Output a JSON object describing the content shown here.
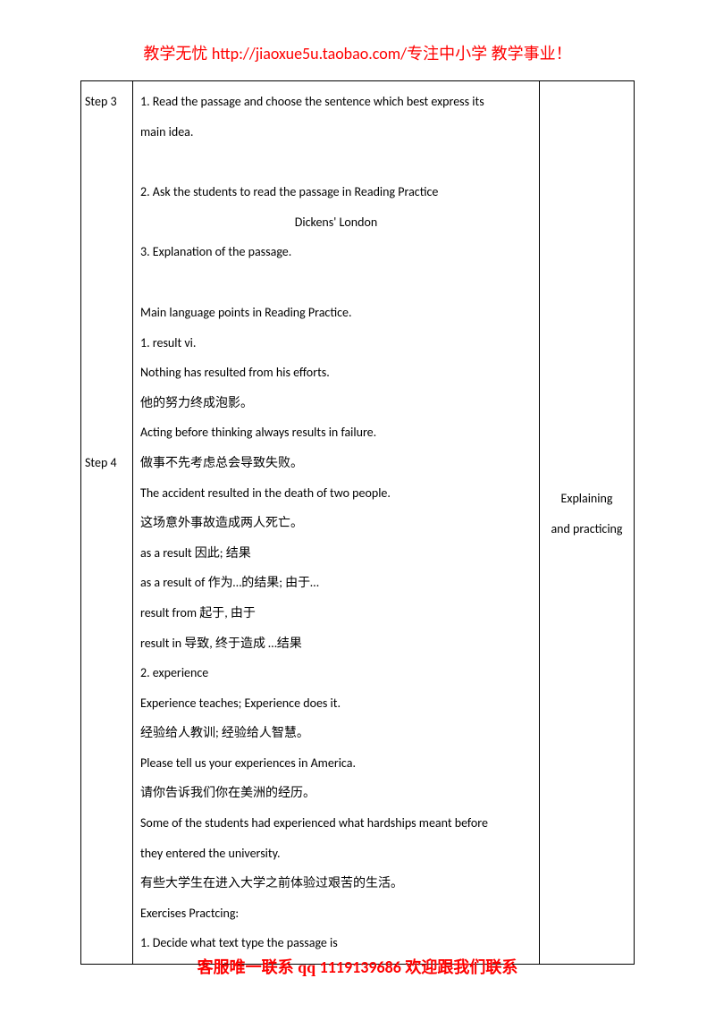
{
  "header": {
    "prefix": "教学无忧 ",
    "link": "http://jiaoxue5u.taobao.com/",
    "suffix": "专注中小学  教学事业！"
  },
  "table": {
    "rows": [
      {
        "steps": [
          {
            "label": "Step 3",
            "offset": ""
          },
          {
            "label": "Step 4",
            "offset": "step4-offset"
          }
        ],
        "content": [
          {
            "text": "1. Read the passage and choose the sentence which best express its",
            "cls": ""
          },
          {
            "text": "main idea.",
            "cls": ""
          },
          {
            "text": "",
            "cls": "spacer"
          },
          {
            "text": "2. Ask the students to read the passage in Reading Practice",
            "cls": ""
          },
          {
            "text": "Dickens' London",
            "cls": "center"
          },
          {
            "text": "3. Explanation of the passage.",
            "cls": ""
          },
          {
            "text": "",
            "cls": "spacer"
          },
          {
            "text": "Main language points in Reading Practice.",
            "cls": ""
          },
          {
            "text": "1. result vi.",
            "cls": ""
          },
          {
            "text": "Nothing has resulted from his efforts.",
            "cls": ""
          },
          {
            "text": "他的努力终成泡影。",
            "cls": ""
          },
          {
            "text": "Acting before thinking always results in failure.",
            "cls": ""
          },
          {
            "text": "做事不先考虑总会导致失败。",
            "cls": ""
          },
          {
            "text": "The accident resulted in the death of two people.",
            "cls": ""
          },
          {
            "text": "这场意外事故造成两人死亡。",
            "cls": ""
          },
          {
            "text": "as a result    因此;  结果",
            "cls": ""
          },
          {
            "text": "as a result of    作为…的结果;  由于…",
            "cls": ""
          },
          {
            "text": "result from    起于,  由于",
            "cls": ""
          },
          {
            "text": "result in    导致,  终于造成 …结果",
            "cls": ""
          },
          {
            "text": "2. experience",
            "cls": ""
          },
          {
            "text": "Experience teaches; Experience does it.",
            "cls": ""
          },
          {
            "text": "经验给人教训;  经验给人智慧。",
            "cls": ""
          },
          {
            "text": "Please tell us your experiences in America.",
            "cls": ""
          },
          {
            "text": "请你告诉我们你在美洲的经历。",
            "cls": ""
          },
          {
            "text": "Some of the students had experienced what hardships meant before",
            "cls": ""
          },
          {
            "text": "they entered the university.",
            "cls": ""
          },
          {
            "text": "有些大学生在进入大学之前体验过艰苦的生活。",
            "cls": ""
          },
          {
            "text": "Exercises Practcing:",
            "cls": ""
          },
          {
            "text": "1.     Decide what text type the passage is",
            "cls": ""
          }
        ],
        "right": [
          {
            "text": "Explaining",
            "offset": "right-offset"
          },
          {
            "text": "and practicing",
            "offset": ""
          }
        ]
      }
    ]
  },
  "footer": {
    "prefix": "客服唯一联系 qq    ",
    "number": "1119139686",
    "suffix": "  欢迎跟我们联系"
  }
}
